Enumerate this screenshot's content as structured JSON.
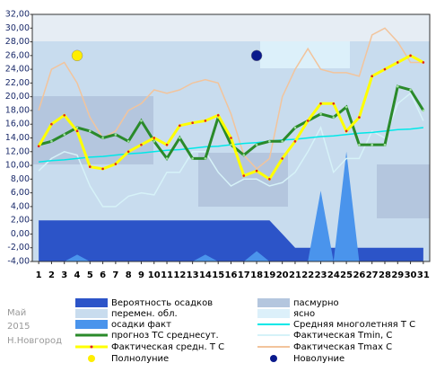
{
  "chart_data": {
    "type": "line",
    "place": [
      "Май",
      "2015",
      "Н.Новгород"
    ],
    "x": [
      1,
      2,
      3,
      4,
      5,
      6,
      7,
      8,
      9,
      10,
      11,
      12,
      13,
      14,
      15,
      16,
      17,
      18,
      19,
      20,
      21,
      22,
      23,
      24,
      25,
      26,
      27,
      28,
      29,
      30,
      31
    ],
    "xlim": [
      0.5,
      31.5
    ],
    "xticks": [
      1,
      2,
      3,
      4,
      5,
      6,
      7,
      8,
      9,
      10,
      11,
      12,
      13,
      14,
      15,
      16,
      17,
      18,
      19,
      20,
      21,
      22,
      23,
      24,
      25,
      26,
      27,
      28,
      29,
      30,
      31
    ],
    "ylim": [
      -4,
      32
    ],
    "yticks": [
      {
        "value": -4,
        "label": "-4,00"
      },
      {
        "value": -2,
        "label": "-2,00"
      },
      {
        "value": 0,
        "label": "0,00"
      },
      {
        "value": 2,
        "label": "2,00"
      },
      {
        "value": 4,
        "label": "4,00"
      },
      {
        "value": 6,
        "label": "6,00"
      },
      {
        "value": 8,
        "label": "8,00"
      },
      {
        "value": 10,
        "label": "10,00"
      },
      {
        "value": 12,
        "label": "12,00"
      },
      {
        "value": 14,
        "label": "14,00"
      },
      {
        "value": 16,
        "label": "16,00"
      },
      {
        "value": 18,
        "label": "18,00"
      },
      {
        "value": 20,
        "label": "20,00"
      },
      {
        "value": 22,
        "label": "22,00"
      },
      {
        "value": 24,
        "label": "24,00"
      },
      {
        "value": 26,
        "label": "26,00"
      },
      {
        "value": 28,
        "label": "28,00"
      },
      {
        "value": 30,
        "label": "30,00"
      },
      {
        "value": 32,
        "label": "32,00"
      }
    ],
    "series": [
      {
        "name": "Вероятность осадков",
        "color": "#2c54c8",
        "kind": "area",
        "values": [
          2,
          2,
          2,
          2,
          2,
          2,
          2,
          2,
          2,
          2,
          2,
          2,
          2,
          2,
          2,
          2,
          2,
          2,
          2,
          0,
          -2,
          -2,
          -2,
          -2,
          -2,
          -2,
          -2,
          -2,
          -2,
          -2,
          -2
        ]
      },
      {
        "name": "осадки факт",
        "color": "#4a94ec",
        "kind": "area",
        "values": [
          -4,
          -4,
          -4,
          -3,
          -4,
          -4,
          -4,
          -4,
          -4,
          -4,
          -4,
          -4,
          -4,
          -3,
          -4,
          -4,
          -4,
          -2.5,
          -4,
          -4,
          -4,
          -4,
          6.3,
          -4,
          12,
          -4,
          -4,
          -4,
          -4,
          -4,
          -4
        ]
      },
      {
        "name": "Фактическая Tmax С",
        "color": "#f2c49c",
        "kind": "line",
        "values": [
          18,
          24,
          25,
          22,
          17,
          14,
          15,
          18,
          19,
          21,
          20.5,
          21,
          22,
          22.5,
          22,
          17.5,
          11.5,
          9.5,
          11,
          20,
          24,
          27,
          24,
          23.5,
          23.5,
          23,
          29,
          30,
          28,
          25,
          25
        ]
      },
      {
        "name": "Фактическая Tmin, С",
        "color": "#d6f2f8",
        "kind": "line",
        "values": [
          9.2,
          11,
          12,
          11.5,
          7,
          4,
          4,
          5.5,
          6,
          5.7,
          9,
          9,
          12,
          12,
          9,
          7,
          8,
          8,
          7,
          7.5,
          9,
          12,
          15.5,
          9,
          11,
          11,
          15,
          14,
          19,
          20.5,
          16.5
        ]
      },
      {
        "name": "Средняя многолетняя Т С",
        "color": "#00e8e8",
        "kind": "line",
        "values": [
          10.5,
          10.7,
          10.8,
          11,
          11.2,
          11.3,
          11.5,
          11.7,
          11.8,
          12,
          12.2,
          12.3,
          12.5,
          12.7,
          12.8,
          13,
          13.2,
          13.3,
          13.5,
          13.7,
          13.8,
          14,
          14.2,
          14.3,
          14.5,
          14.7,
          14.8,
          15,
          15.2,
          15.3,
          15.5
        ]
      },
      {
        "name": "прогноз ТС среднесут.",
        "color": "#2a8a2a",
        "kind": "dotted",
        "values": [
          13,
          13.5,
          14.5,
          15.5,
          15,
          14,
          14.5,
          13.5,
          16.5,
          13.5,
          11,
          14,
          11,
          11,
          17,
          13,
          11.5,
          13,
          13.5,
          13.5,
          15.5,
          16.5,
          17.5,
          17,
          18.5,
          13,
          13,
          13,
          21.5,
          21,
          18
        ]
      },
      {
        "name": "Фактическая средн. Т С",
        "color": "#ffff00",
        "kind": "marked",
        "values": [
          12.8,
          16,
          17.3,
          15,
          9.8,
          9.5,
          10.2,
          12,
          13,
          14,
          13,
          15.8,
          16.2,
          16.5,
          17.3,
          14,
          8.5,
          9.2,
          8,
          11,
          13.5,
          16.5,
          19,
          19,
          15,
          17,
          23,
          24,
          25,
          26,
          25
        ]
      }
    ],
    "bands": [
      {
        "name": "пасмурно",
        "color": "#b4c6de"
      },
      {
        "name": "перемен. обл.",
        "color": "#c8dcee"
      },
      {
        "name": "ясно",
        "color": "#dcf0fa"
      }
    ],
    "markers": [
      {
        "name": "Полнолуние",
        "color": "#ffee00",
        "x": 4,
        "y": 26
      },
      {
        "name": "Новолуние",
        "color": "#0a1a8c",
        "x": 18,
        "y": 26
      }
    ]
  }
}
